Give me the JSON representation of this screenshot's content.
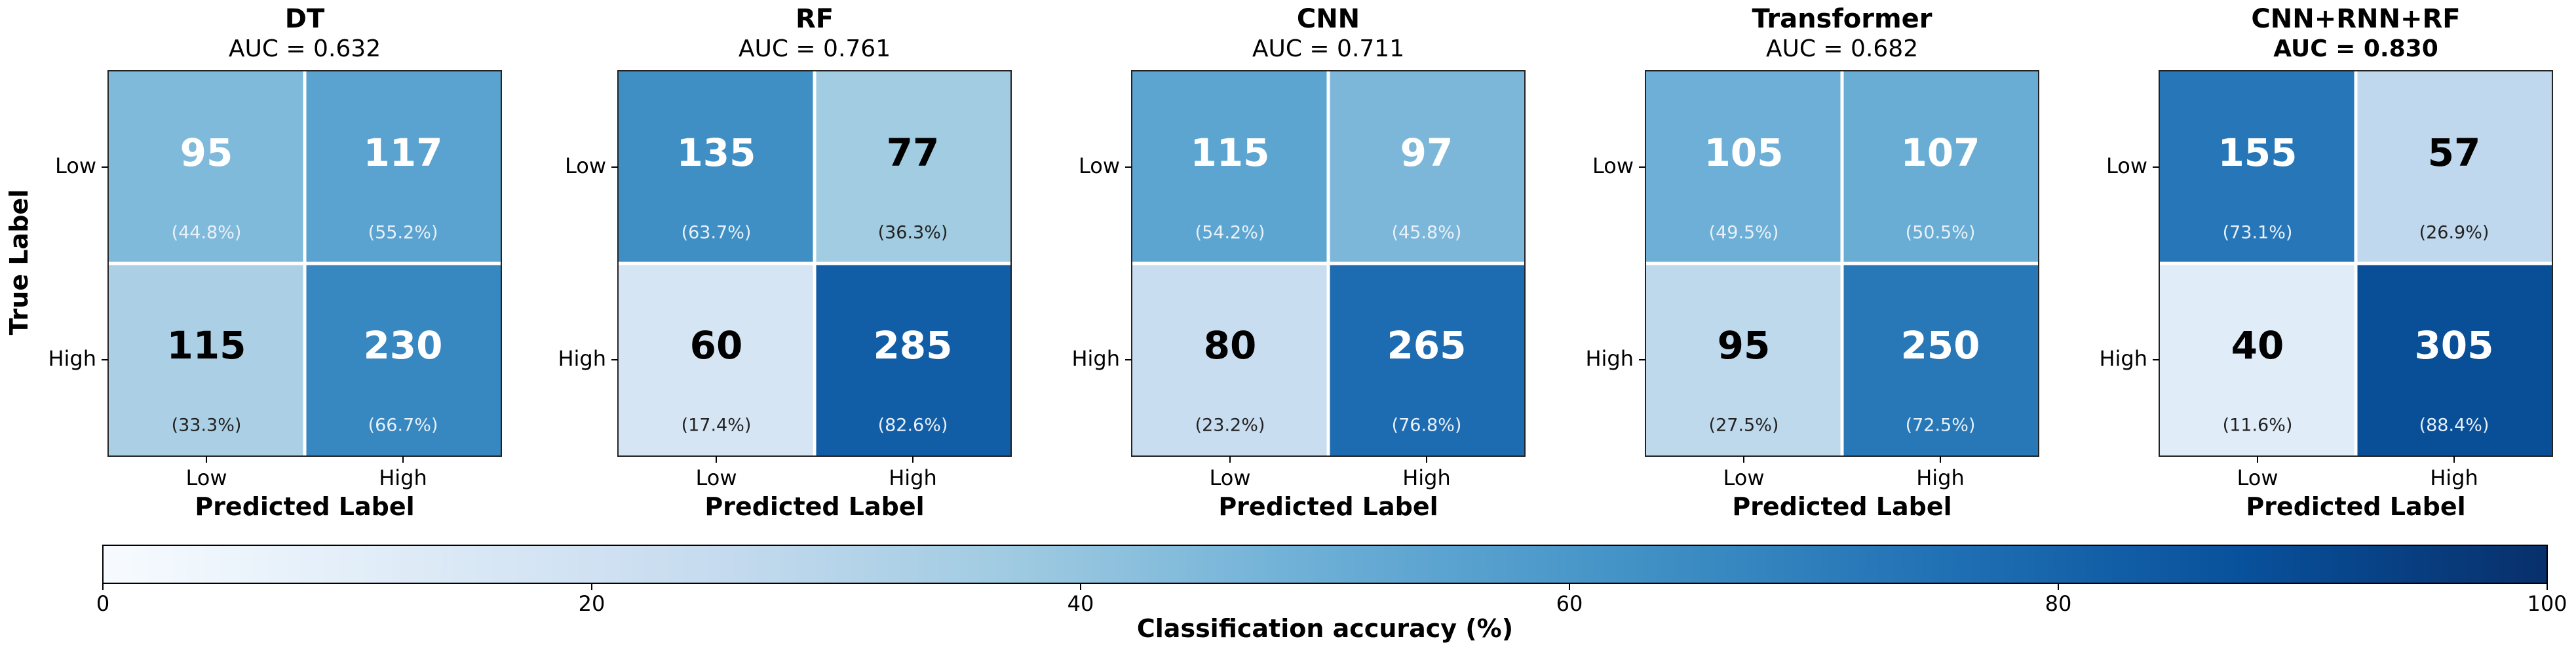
{
  "chart_data": {
    "type": "heatmap",
    "axes": {
      "xlabel": "Predicted Label",
      "ylabel": "True Label",
      "x_tick_labels": [
        "Low",
        "High"
      ],
      "y_tick_labels": [
        "Low",
        "High"
      ]
    },
    "panels": [
      {
        "title": "DT",
        "subtitle": "AUC = 0.632",
        "highlight_color": null,
        "cells": [
          [
            {
              "count": "95",
              "percent": "(44.8%)",
              "value": 44.8
            },
            {
              "count": "117",
              "percent": "(55.2%)",
              "value": 55.2
            }
          ],
          [
            {
              "count": "115",
              "percent": "(33.3%)",
              "value": 33.3
            },
            {
              "count": "230",
              "percent": "(66.7%)",
              "value": 66.7
            }
          ]
        ]
      },
      {
        "title": "RF",
        "subtitle": "AUC = 0.761",
        "highlight_color": null,
        "cells": [
          [
            {
              "count": "135",
              "percent": "(63.7%)",
              "value": 63.7
            },
            {
              "count": "77",
              "percent": "(36.3%)",
              "value": 36.3
            }
          ],
          [
            {
              "count": "60",
              "percent": "(17.4%)",
              "value": 17.4
            },
            {
              "count": "285",
              "percent": "(82.6%)",
              "value": 82.6
            }
          ]
        ]
      },
      {
        "title": "CNN",
        "subtitle": "AUC = 0.711",
        "highlight_color": null,
        "cells": [
          [
            {
              "count": "115",
              "percent": "(54.2%)",
              "value": 54.2
            },
            {
              "count": "97",
              "percent": "(45.8%)",
              "value": 45.8
            }
          ],
          [
            {
              "count": "80",
              "percent": "(23.2%)",
              "value": 23.2
            },
            {
              "count": "265",
              "percent": "(76.8%)",
              "value": 76.8
            }
          ]
        ]
      },
      {
        "title": "Transformer",
        "subtitle": "AUC = 0.682",
        "highlight_color": null,
        "cells": [
          [
            {
              "count": "105",
              "percent": "(49.5%)",
              "value": 49.5
            },
            {
              "count": "107",
              "percent": "(50.5%)",
              "value": 50.5
            }
          ],
          [
            {
              "count": "95",
              "percent": "(27.5%)",
              "value": 27.5
            },
            {
              "count": "250",
              "percent": "(72.5%)",
              "value": 72.5
            }
          ]
        ]
      },
      {
        "title": "CNN+RNN+RF",
        "subtitle": "AUC = 0.830",
        "highlight_color": "#2e8b2e",
        "cells": [
          [
            {
              "count": "155",
              "percent": "(73.1%)",
              "value": 73.1
            },
            {
              "count": "57",
              "percent": "(26.9%)",
              "value": 26.9
            }
          ],
          [
            {
              "count": "40",
              "percent": "(11.6%)",
              "value": 11.6
            },
            {
              "count": "305",
              "percent": "(88.4%)",
              "value": 88.4
            }
          ]
        ]
      }
    ],
    "colorbar": {
      "label": "Classification accuracy (%)",
      "range": [
        0,
        100
      ],
      "ticks": [
        "0",
        "20",
        "40",
        "60",
        "80",
        "100"
      ],
      "colormap": "Blues",
      "orientation": "horizontal",
      "placement": "bottom"
    },
    "colormap_stops": [
      "#f7fbff",
      "#deebf7",
      "#c6dbef",
      "#9ecae1",
      "#6baed6",
      "#4292c6",
      "#2171b5",
      "#08519c",
      "#08306b"
    ]
  }
}
